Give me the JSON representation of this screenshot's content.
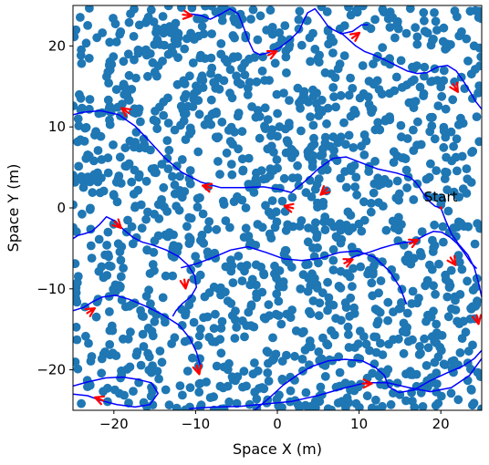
{
  "chart_data": {
    "type": "scatter",
    "title": "",
    "xlabel": "Space X (m)",
    "ylabel": "Space Y (m)",
    "xlim": [
      -25,
      25
    ],
    "ylim": [
      -25,
      25
    ],
    "xticks": [
      -20,
      -10,
      0,
      10,
      20
    ],
    "yticks": [
      -20,
      -10,
      0,
      10,
      20
    ],
    "grid": false,
    "annotations": [
      {
        "text": "Start",
        "x": 20,
        "y": 0
      }
    ],
    "colors": {
      "obstacles": "#1f77b4",
      "path": "#0000ff",
      "arrows": "#ff0000",
      "start_marker": "#ff0000"
    },
    "obstacle_field": {
      "count_approx": 1500,
      "distribution": "uniform random, dense",
      "extent": [
        -25,
        25
      ]
    },
    "series": [
      {
        "type": "line",
        "x": [
          20,
          19.3,
          18.6,
          17.9,
          17.4,
          16.9,
          16.2,
          14.6,
          12.3,
          10.2,
          8.4,
          6.8,
          5.1,
          3.4,
          1.7,
          0.2,
          -1.7,
          -4.1,
          -6.9,
          -9.4,
          -11.7,
          -13.8,
          -15.6,
          -17.4,
          -19.4,
          -21.6,
          -23.9,
          -25
        ],
        "y": [
          0,
          0.2,
          0.8,
          1.7,
          2.5,
          3.2,
          3.8,
          4.3,
          4.8,
          5.6,
          6.3,
          6.1,
          4.9,
          3.3,
          1.9,
          2.3,
          2.6,
          2.5,
          2.5,
          3.2,
          4.4,
          6.2,
          8.2,
          10.1,
          11.5,
          12.0,
          11.8,
          11.5
        ]
      },
      {
        "type": "line",
        "x": [
          20,
          20.6,
          21.3,
          22.2,
          23.3,
          24.1,
          24.6,
          25
        ],
        "y": [
          0,
          -1.6,
          -3.2,
          -4.5,
          -5.8,
          -7.4,
          -9.2,
          -11
        ]
      },
      {
        "type": "line",
        "x": [
          -25,
          -24.4,
          -23.6,
          -22.7,
          -21.8,
          -20.9,
          -19.9,
          -18.8,
          -17.7,
          -16.6,
          -15.2,
          -13.6,
          -12.1,
          -10.9,
          -10.1,
          -9.9,
          -10.6,
          -11.6,
          -12.4,
          -12.8
        ],
        "y": [
          -3.8,
          -3.4,
          -3.2,
          -2.9,
          -2.1,
          -1.1,
          -1.6,
          -2.7,
          -3.6,
          -4.2,
          -4.6,
          -5.2,
          -6.0,
          -7.1,
          -8.4,
          -9.8,
          -11.0,
          -11.8,
          -12.7,
          -13.4
        ]
      },
      {
        "type": "line",
        "x": [
          -25,
          -23.7,
          -22.6,
          -21.4,
          -19.8,
          -18.1,
          -16.2,
          -14.0,
          -12.0,
          -10.7,
          -9.9,
          -9.4
        ],
        "y": [
          -12.7,
          -12.3,
          -11.6,
          -11.0,
          -10.8,
          -11.3,
          -12.1,
          -13.2,
          -14.5,
          -16.1,
          -17.8,
          -19.6
        ]
      },
      {
        "type": "line",
        "x": [
          -25,
          -23.2,
          -21.0,
          -18.9,
          -17.0,
          -15.4,
          -14.6,
          -15.6,
          -17.4,
          -19.6,
          -21.6,
          -23.2,
          -25
        ],
        "y": [
          -22.0,
          -21.5,
          -21.0,
          -20.9,
          -21.2,
          -21.6,
          -22.9,
          -24.3,
          -24.6,
          -24.3,
          -23.8,
          -23.2,
          -23.0
        ]
      },
      {
        "type": "line",
        "x": [
          -10.8,
          -7.7,
          -4.5,
          -1.3,
          1.8,
          4.9,
          8.0,
          10.8,
          13.5,
          16.1,
          18.7,
          21.3,
          23.5,
          25
        ],
        "y": [
          -24.8,
          -24.6,
          -24.5,
          -24.2,
          -23.9,
          -23.2,
          -22.3,
          -21.6,
          -21.6,
          -22.2,
          -22.7,
          -22.2,
          -20.7,
          -18.6
        ]
      },
      {
        "type": "line",
        "x": [
          -2.8,
          -1.0,
          0.7,
          2.5,
          4.2,
          6.2,
          8.3,
          10.4,
          12.0,
          13.1,
          13.6,
          14.9,
          16.7,
          18.6,
          20.7,
          22.6,
          24.1,
          25
        ],
        "y": [
          -25,
          -23.5,
          -21.9,
          -20.6,
          -19.6,
          -18.9,
          -18.7,
          -18.9,
          -19.7,
          -20.7,
          -22.1,
          -22.8,
          -22.5,
          -21.4,
          -20.4,
          -19.6,
          -18.6,
          -17.6
        ]
      },
      {
        "type": "line",
        "x": [
          -11.8,
          -9.9,
          -7.8,
          -5.7,
          -3.6,
          -1.4,
          0.8,
          3.0,
          5.3,
          7.6,
          9.8,
          11.9,
          13.7,
          15.0,
          15.8
        ],
        "y": [
          -7.4,
          -6.9,
          -6.1,
          -5.2,
          -4.8,
          -5.5,
          -6.3,
          -6.5,
          -6.2,
          -5.5,
          -5.3,
          -6.1,
          -7.8,
          -9.8,
          -11.9
        ]
      },
      {
        "type": "line",
        "x": [
          8.4,
          9.7,
          11.2,
          12.6,
          14.0,
          15.3,
          16.4,
          17.3,
          18.2,
          19.1,
          20.1,
          21.1,
          22.0,
          22.9,
          23.7,
          24.4
        ],
        "y": [
          -6.5,
          -5.9,
          -5.5,
          -5.0,
          -4.6,
          -4.3,
          -4.2,
          -3.8,
          -3.3,
          -2.9,
          -3.0,
          -3.6,
          -4.4,
          -5.6,
          -6.8,
          -7.5
        ]
      },
      {
        "type": "line",
        "x": [
          -11.0,
          -9.4,
          -8.2,
          -7.0,
          -5.8,
          -4.8,
          -4.2,
          -3.5,
          -2.9,
          -2.1,
          -1.0,
          0.3,
          1.6,
          2.7,
          3.2,
          3.7,
          4.6,
          5.3,
          6.3,
          7.8,
          9.2,
          10.3,
          11.1
        ],
        "y": [
          24.0,
          23.8,
          23.3,
          23.9,
          24.6,
          24.0,
          22.5,
          20.6,
          19.3,
          18.9,
          19.2,
          19.8,
          20.8,
          21.9,
          23.1,
          24.1,
          24.6,
          23.7,
          22.3,
          21.5,
          21.8,
          22.6,
          22.6
        ]
      },
      {
        "type": "line",
        "x": [
          7.7,
          8.6,
          9.6,
          10.7,
          11.8,
          13.1,
          14.5,
          15.9,
          17.1,
          18.3,
          19.6,
          20.8,
          21.9,
          22.8,
          23.6,
          24.3,
          25
        ],
        "y": [
          21.7,
          20.9,
          20.0,
          19.3,
          18.9,
          18.3,
          17.6,
          16.9,
          16.6,
          16.7,
          17.4,
          17.6,
          16.9,
          15.6,
          14.3,
          13.1,
          12.2
        ]
      }
    ],
    "direction_arrows": [
      {
        "x": -11.0,
        "y": 23.8
      },
      {
        "x": -0.6,
        "y": 19.1
      },
      {
        "x": 9.6,
        "y": 21.3
      },
      {
        "x": 21.8,
        "y": 14.8
      },
      {
        "x": -18.6,
        "y": 12.0
      },
      {
        "x": -8.6,
        "y": 2.6
      },
      {
        "x": 1.4,
        "y": 0.1
      },
      {
        "x": 5.7,
        "y": 2.0
      },
      {
        "x": 16.7,
        "y": -4.2
      },
      {
        "x": 8.7,
        "y": -6.6
      },
      {
        "x": 21.5,
        "y": -6.6
      },
      {
        "x": -11.3,
        "y": -9.4
      },
      {
        "x": -19.5,
        "y": -2.1
      },
      {
        "x": -22.8,
        "y": -12.7
      },
      {
        "x": -9.7,
        "y": -20.0
      },
      {
        "x": 11.0,
        "y": -21.7
      },
      {
        "x": -21.8,
        "y": -23.6
      },
      {
        "x": 24.5,
        "y": -13.8
      }
    ]
  }
}
